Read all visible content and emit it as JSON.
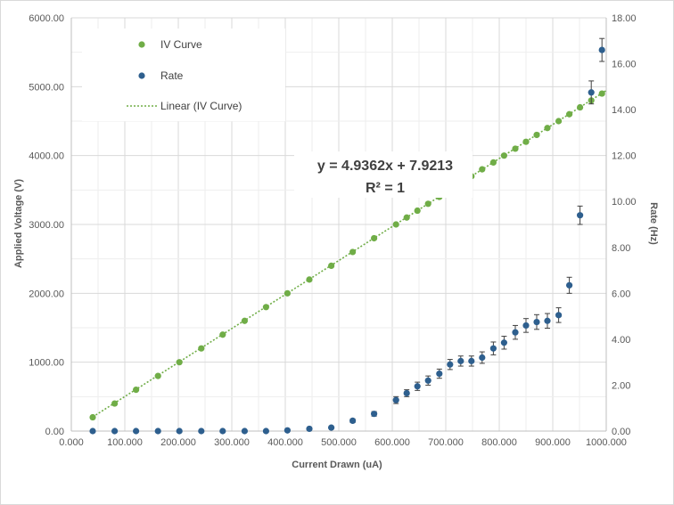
{
  "chart_data": {
    "type": "scatter",
    "x_axis": {
      "label": "Current Drawn (uA)",
      "range": [
        0,
        1000
      ],
      "ticks": [
        "0.000",
        "100.000",
        "200.000",
        "300.000",
        "400.000",
        "500.000",
        "600.000",
        "700.000",
        "800.000",
        "900.000",
        "1000.000"
      ]
    },
    "y_axis_left": {
      "label": "Applied Voltage (V)",
      "range": [
        0,
        6000
      ],
      "ticks": [
        "0.00",
        "1000.00",
        "2000.00",
        "3000.00",
        "4000.00",
        "5000.00",
        "6000.00"
      ]
    },
    "y_axis_right": {
      "label": "Rate (Hz)",
      "range": [
        0,
        18
      ],
      "ticks": [
        "0.00",
        "2.00",
        "4.00",
        "6.00",
        "8.00",
        "10.00",
        "12.00",
        "14.00",
        "16.00",
        "18.00"
      ]
    },
    "grid": true,
    "legend_position": "top-left",
    "legend": [
      "IV Curve",
      "Rate",
      "Linear (IV Curve)"
    ],
    "trendline": {
      "series": "IV Curve",
      "equation": "y = 4.9362x + 7.9213",
      "r_squared": "R² = 1",
      "slope": 4.9362,
      "intercept": 7.9213,
      "x_range": [
        40,
        1000
      ]
    },
    "series": [
      {
        "name": "IV Curve",
        "axis": "left",
        "color": "#70ad47",
        "points": [
          [
            40,
            200
          ],
          [
            81,
            400
          ],
          [
            121,
            600
          ],
          [
            162,
            800
          ],
          [
            202,
            1000
          ],
          [
            243,
            1200
          ],
          [
            283,
            1400
          ],
          [
            324,
            1600
          ],
          [
            364,
            1800
          ],
          [
            404,
            2000
          ],
          [
            445,
            2200
          ],
          [
            486,
            2400
          ],
          [
            526,
            2600
          ],
          [
            566,
            2800
          ],
          [
            607,
            3000
          ],
          [
            627,
            3100
          ],
          [
            647,
            3200
          ],
          [
            667,
            3300
          ],
          [
            688,
            3400
          ],
          [
            708,
            3500
          ],
          [
            728,
            3600
          ],
          [
            748,
            3700
          ],
          [
            768,
            3800
          ],
          [
            789,
            3900
          ],
          [
            809,
            4000
          ],
          [
            830,
            4100
          ],
          [
            850,
            4200
          ],
          [
            870,
            4300
          ],
          [
            890,
            4400
          ],
          [
            911,
            4500
          ],
          [
            931,
            4600
          ],
          [
            951,
            4700
          ],
          [
            972,
            4800
          ],
          [
            992,
            4900
          ]
        ]
      },
      {
        "name": "Rate",
        "axis": "right",
        "color": "#2e5f8e",
        "points": [
          [
            40,
            0.0,
            0.0
          ],
          [
            81,
            0.0,
            0.0
          ],
          [
            121,
            0.0,
            0.0
          ],
          [
            162,
            0.0,
            0.0
          ],
          [
            202,
            0.0,
            0.0
          ],
          [
            243,
            0.0,
            0.0
          ],
          [
            283,
            0.0,
            0.0
          ],
          [
            324,
            0.0,
            0.0
          ],
          [
            364,
            0.0,
            0.0
          ],
          [
            404,
            0.03,
            0.0
          ],
          [
            445,
            0.1,
            0.03
          ],
          [
            486,
            0.15,
            0.04
          ],
          [
            526,
            0.45,
            0.08
          ],
          [
            566,
            0.75,
            0.1
          ],
          [
            607,
            1.35,
            0.15
          ],
          [
            627,
            1.65,
            0.15
          ],
          [
            647,
            1.95,
            0.18
          ],
          [
            667,
            2.2,
            0.2
          ],
          [
            688,
            2.5,
            0.2
          ],
          [
            708,
            2.9,
            0.22
          ],
          [
            728,
            3.05,
            0.22
          ],
          [
            748,
            3.05,
            0.22
          ],
          [
            768,
            3.2,
            0.25
          ],
          [
            789,
            3.6,
            0.28
          ],
          [
            809,
            3.85,
            0.28
          ],
          [
            830,
            4.3,
            0.3
          ],
          [
            850,
            4.6,
            0.3
          ],
          [
            870,
            4.75,
            0.32
          ],
          [
            890,
            4.8,
            0.32
          ],
          [
            911,
            5.05,
            0.32
          ],
          [
            931,
            6.35,
            0.35
          ],
          [
            951,
            9.4,
            0.4
          ],
          [
            972,
            14.75,
            0.5
          ],
          [
            992,
            16.6,
            0.5
          ]
        ]
      }
    ]
  }
}
